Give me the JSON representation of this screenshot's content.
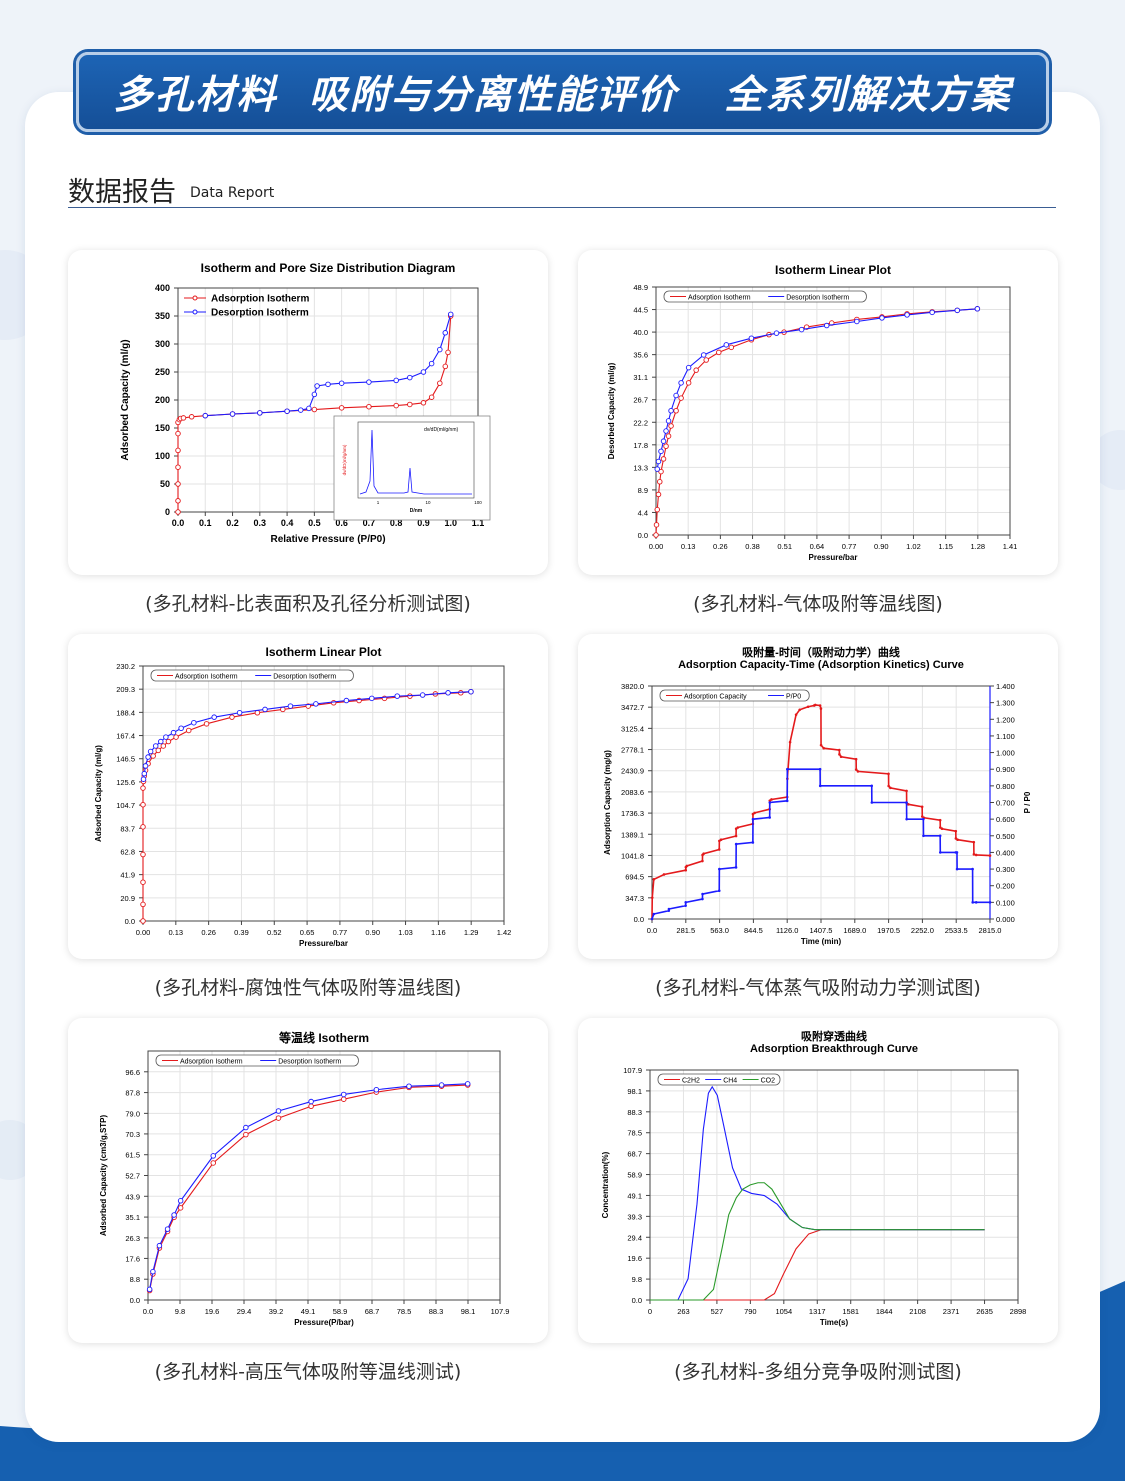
{
  "banner": {
    "title": "多孔材料  吸附与分离性能评价   全系列解决方案"
  },
  "section": {
    "title_cn": "数据报告",
    "title_en": "Data Report"
  },
  "colors": {
    "red": "#e41a1c",
    "blue": "#1c1cff",
    "green": "#2a9a2a",
    "banner": "#1a5aa7",
    "bottom": "#1660b0"
  },
  "captions": [
    "(多孔材料-比表面积及孔径分析测试图)",
    "(多孔材料-气体吸附等温线图)",
    "(多孔材料-腐蚀性气体吸附等温线图)",
    "(多孔材料-气体蒸气吸附动力学测试图)",
    "(多孔材料-高压气体吸附等温线测试)",
    "(多孔材料-多组分竞争吸附测试图)"
  ],
  "chart_data": [
    {
      "type": "line",
      "title": "Isotherm and Pore Size Distribution Diagram",
      "xlabel": "Relative Pressure (P/P0)",
      "ylabel": "Adsorbed Capacity (ml/g)",
      "xlim": [
        0,
        1.1
      ],
      "ylim": [
        0,
        400
      ],
      "xticks": [
        "0.0",
        "0.1",
        "0.2",
        "0.3",
        "0.4",
        "0.5",
        "0.6",
        "0.7",
        "0.8",
        "0.9",
        "1.0",
        "1.1"
      ],
      "yticks": [
        "0",
        "50",
        "100",
        "150",
        "200",
        "250",
        "300",
        "350",
        "400"
      ],
      "legend": "top-left",
      "series": [
        {
          "name": "Adsorption Isotherm",
          "color": "red",
          "x": [
            0,
            0,
            0,
            0,
            0,
            0,
            0,
            0.005,
            0.01,
            0.02,
            0.05,
            0.1,
            0.2,
            0.3,
            0.4,
            0.5,
            0.6,
            0.7,
            0.8,
            0.85,
            0.9,
            0.93,
            0.96,
            0.98,
            0.99,
            1.0
          ],
          "y": [
            0,
            20,
            50,
            80,
            110,
            140,
            160,
            165,
            167,
            168,
            170,
            172,
            175,
            177,
            180,
            183,
            186,
            188,
            190,
            192,
            195,
            205,
            230,
            260,
            285,
            350
          ]
        },
        {
          "name": "Desorption Isotherm",
          "color": "blue",
          "x": [
            0.1,
            0.2,
            0.3,
            0.4,
            0.45,
            0.48,
            0.5,
            0.51,
            0.55,
            0.6,
            0.7,
            0.8,
            0.85,
            0.9,
            0.93,
            0.96,
            0.98,
            1.0
          ],
          "y": [
            172,
            175,
            177,
            180,
            182,
            185,
            210,
            225,
            228,
            230,
            232,
            235,
            240,
            250,
            265,
            290,
            320,
            353
          ]
        }
      ],
      "inset": {
        "legend": "dv/dD(ml/g/nm)",
        "xlabel": "D/nm",
        "ylabel": "dv/dD(ml/g/nm)",
        "xticks": [
          "1",
          "10",
          "100"
        ]
      }
    },
    {
      "type": "line",
      "title": "Isotherm Linear Plot",
      "xlabel": "Pressure/bar",
      "ylabel": "Desorbed Capacity (ml/g)",
      "xlim": [
        0,
        1.41
      ],
      "ylim": [
        0,
        48.9
      ],
      "xticks": [
        "0.00",
        "0.13",
        "0.26",
        "0.38",
        "0.51",
        "0.64",
        "0.77",
        "0.90",
        "1.02",
        "1.15",
        "1.28",
        "1.41"
      ],
      "yticks": [
        "0.0",
        "4.4",
        "8.9",
        "13.3",
        "17.8",
        "22.2",
        "26.7",
        "31.1",
        "35.6",
        "40.0",
        "44.5",
        "48.9"
      ],
      "legend": "top-left",
      "series": [
        {
          "name": "Adsorption Isotherm",
          "color": "red",
          "x": [
            0,
            0.002,
            0.005,
            0.01,
            0.015,
            0.02,
            0.03,
            0.04,
            0.05,
            0.06,
            0.08,
            0.1,
            0.13,
            0.16,
            0.2,
            0.25,
            0.3,
            0.38,
            0.45,
            0.51,
            0.6,
            0.7,
            0.8,
            0.9,
            1.0,
            1.1,
            1.2,
            1.28
          ],
          "y": [
            0,
            2,
            5,
            8,
            10.5,
            12.5,
            15,
            17.5,
            19.5,
            21.5,
            24.5,
            27,
            30,
            32.5,
            34.5,
            36,
            37,
            38.5,
            39.5,
            40,
            41,
            41.8,
            42.5,
            43,
            43.6,
            44,
            44.3,
            44.6
          ]
        },
        {
          "name": "Desorption Isotherm",
          "color": "blue",
          "x": [
            0.005,
            0.01,
            0.02,
            0.03,
            0.04,
            0.05,
            0.06,
            0.08,
            0.1,
            0.13,
            0.19,
            0.28,
            0.38,
            0.48,
            0.58,
            0.68,
            0.8,
            0.9,
            1.0,
            1.1,
            1.2,
            1.28
          ],
          "y": [
            13,
            14.5,
            16.5,
            18.5,
            20.5,
            22.5,
            24.5,
            27.5,
            30,
            33,
            35.5,
            37.5,
            38.8,
            39.8,
            40.5,
            41.3,
            42.1,
            42.8,
            43.4,
            43.9,
            44.3,
            44.6
          ]
        }
      ]
    },
    {
      "type": "line",
      "title": "Isotherm Linear Plot",
      "xlabel": "Pressure/bar",
      "ylabel": "Adsorbed Capacity (ml/g)",
      "xlim": [
        0,
        1.42
      ],
      "ylim": [
        0,
        230.2
      ],
      "xticks": [
        "0.00",
        "0.13",
        "0.26",
        "0.39",
        "0.52",
        "0.65",
        "0.77",
        "0.90",
        "1.03",
        "1.16",
        "1.29",
        "1.42"
      ],
      "yticks": [
        "0.0",
        "20.9",
        "41.9",
        "62.8",
        "83.7",
        "104.7",
        "125.6",
        "146.5",
        "167.4",
        "188.4",
        "209.3",
        "230.2"
      ],
      "legend": "top-left",
      "series": [
        {
          "name": "Adsorption Isotherm",
          "color": "red",
          "x": [
            0,
            0,
            0,
            0,
            0,
            0,
            0,
            0.002,
            0.005,
            0.01,
            0.02,
            0.04,
            0.06,
            0.08,
            0.1,
            0.13,
            0.18,
            0.25,
            0.35,
            0.45,
            0.55,
            0.65,
            0.75,
            0.85,
            0.95,
            1.05,
            1.15,
            1.25,
            1.29
          ],
          "y": [
            0,
            15,
            35,
            60,
            85,
            105,
            120,
            126,
            131,
            136,
            142,
            149,
            154,
            158,
            162,
            166,
            172,
            178,
            184,
            188,
            191,
            194,
            197,
            199,
            201,
            203,
            205,
            206,
            207
          ]
        },
        {
          "name": "Desorption Isotherm",
          "color": "blue",
          "x": [
            0.002,
            0.005,
            0.01,
            0.02,
            0.03,
            0.05,
            0.07,
            0.09,
            0.12,
            0.15,
            0.2,
            0.28,
            0.38,
            0.48,
            0.58,
            0.68,
            0.8,
            0.9,
            1.0,
            1.1,
            1.2,
            1.29
          ],
          "y": [
            128,
            133,
            140,
            148,
            153,
            158,
            162,
            166,
            170,
            174,
            179,
            184,
            188,
            191,
            194,
            196,
            199,
            201,
            203,
            204,
            206,
            207
          ]
        }
      ]
    },
    {
      "type": "line",
      "title": "吸附量-时间（吸附动力学）曲线",
      "subtitle": "Adsorption Capacity-Time (Adsorption Kinetics) Curve",
      "xlabel": "Time (min)",
      "ylabel": "Adsorption Capacity (mg/g)",
      "y2label": "P / P0",
      "xlim": [
        0,
        2815
      ],
      "ylim": [
        0,
        3820
      ],
      "y2lim": [
        0,
        1.4
      ],
      "xticks": [
        "0.0",
        "281.5",
        "563.0",
        "844.5",
        "1126.0",
        "1407.5",
        "1689.0",
        "1970.5",
        "2252.0",
        "2533.5",
        "2815.0"
      ],
      "yticks": [
        "0.0",
        "347.3",
        "694.5",
        "1041.8",
        "1389.1",
        "1736.3",
        "2083.6",
        "2430.9",
        "2778.1",
        "3125.4",
        "3472.7",
        "3820.0"
      ],
      "y2ticks": [
        "0.000",
        "0.100",
        "0.200",
        "0.300",
        "0.400",
        "0.500",
        "0.600",
        "0.700",
        "0.800",
        "0.900",
        "1.000",
        "1.100",
        "1.200",
        "1.300",
        "1.400"
      ],
      "legend": "top-left",
      "series": [
        {
          "name": "Adsorption  Capacity",
          "color": "red",
          "axis": "left",
          "x": [
            0,
            2,
            15,
            100,
            281,
            282,
            290,
            420,
            421,
            430,
            560,
            561,
            575,
            700,
            701,
            715,
            840,
            841,
            855,
            980,
            981,
            995,
            1126,
            1127,
            1150,
            1200,
            1230,
            1300,
            1350,
            1360,
            1400,
            1407,
            1408,
            1430,
            1560,
            1561,
            1575,
            1700,
            1701,
            1715,
            1970,
            1971,
            1985,
            2120,
            2121,
            2135,
            2250,
            2251,
            2265,
            2400,
            2401,
            2415,
            2530,
            2531,
            2545,
            2680,
            2681,
            2700,
            2815
          ],
          "y": [
            0,
            350,
            650,
            730,
            800,
            850,
            870,
            950,
            1050,
            1070,
            1140,
            1280,
            1300,
            1360,
            1480,
            1500,
            1560,
            1720,
            1740,
            1800,
            1940,
            1960,
            2000,
            2300,
            2900,
            3350,
            3430,
            3480,
            3500,
            3510,
            3500,
            3450,
            2850,
            2800,
            2770,
            2700,
            2660,
            2620,
            2450,
            2420,
            2380,
            2180,
            2150,
            2100,
            1900,
            1880,
            1840,
            1680,
            1660,
            1620,
            1500,
            1480,
            1440,
            1320,
            1300,
            1260,
            1060,
            1050,
            1040
          ]
        },
        {
          "name": "P/P0",
          "color": "blue",
          "axis": "right",
          "x": [
            0,
            15,
            140,
            141,
            280,
            281,
            420,
            421,
            560,
            561,
            700,
            701,
            840,
            841,
            980,
            981,
            1126,
            1127,
            1400,
            1401,
            1830,
            1831,
            2120,
            2121,
            2260,
            2261,
            2400,
            2401,
            2530,
            2540,
            2541,
            2670,
            2671,
            2700,
            2815
          ],
          "y": [
            0.0,
            0.03,
            0.05,
            0.06,
            0.08,
            0.1,
            0.12,
            0.15,
            0.17,
            0.3,
            0.31,
            0.45,
            0.46,
            0.6,
            0.61,
            0.7,
            0.71,
            0.9,
            0.9,
            0.8,
            0.8,
            0.7,
            0.7,
            0.6,
            0.6,
            0.5,
            0.5,
            0.4,
            0.4,
            0.4,
            0.3,
            0.3,
            0.1,
            0.1,
            0.1
          ]
        }
      ]
    },
    {
      "type": "line",
      "title": "等温线 Isotherm",
      "xlabel": "Pressure(P/bar)",
      "ylabel": "Adsorbed Capacity (cm3/g,STP)",
      "xlim": [
        0,
        107.9
      ],
      "ylim": [
        0,
        105.4
      ],
      "xticks": [
        "0.0",
        "9.8",
        "19.6",
        "29.4",
        "39.2",
        "49.1",
        "58.9",
        "68.7",
        "78.5",
        "88.3",
        "98.1",
        "107.9"
      ],
      "yticks": [
        "0.0",
        "8.8",
        "17.6",
        "26.3",
        "35.1",
        "43.9",
        "52.7",
        "61.5",
        "70.3",
        "79.0",
        "87.8",
        "96.6"
      ],
      "legend": "top-left",
      "series": [
        {
          "name": "Adsorption Isotherm",
          "color": "red",
          "x": [
            0.5,
            1.5,
            3.5,
            6,
            8,
            10,
            20,
            30,
            40,
            50,
            60,
            70,
            80,
            90,
            98
          ],
          "y": [
            4,
            11,
            22,
            29,
            35,
            39,
            58,
            70,
            77,
            82,
            85,
            88,
            90,
            90.5,
            91
          ]
        },
        {
          "name": "Desorption Isotherm",
          "color": "blue",
          "x": [
            0.5,
            1.5,
            3.5,
            6,
            8,
            10,
            20,
            30,
            40,
            50,
            60,
            70,
            80,
            90,
            98
          ],
          "y": [
            4.5,
            12,
            23,
            30,
            36,
            42,
            61,
            73,
            80,
            84,
            87,
            89,
            90.5,
            91,
            91.5
          ]
        }
      ]
    },
    {
      "type": "line",
      "title": "吸附穿透曲线",
      "subtitle": "Adsorption Breakthrough Curve",
      "xlabel": "Time(s)",
      "ylabel": "Concentration(%)",
      "xlim": [
        0,
        2898
      ],
      "ylim": [
        0,
        107.9
      ],
      "xticks": [
        "0",
        "263",
        "527",
        "790",
        "1054",
        "1317",
        "1581",
        "1844",
        "2108",
        "2371",
        "2635",
        "2898"
      ],
      "yticks": [
        "0.0",
        "9.8",
        "19.6",
        "29.4",
        "39.3",
        "49.1",
        "58.9",
        "68.7",
        "78.5",
        "88.3",
        "98.1",
        "107.9"
      ],
      "legend": "top-left",
      "series": [
        {
          "name": "C2H2",
          "color": "red",
          "x": [
            0,
            900,
            980,
            1050,
            1150,
            1250,
            1350,
            1450,
            2635
          ],
          "y": [
            0,
            0,
            3,
            12,
            24,
            31,
            33,
            33,
            33
          ]
        },
        {
          "name": "CH4",
          "color": "blue",
          "x": [
            0,
            220,
            300,
            370,
            420,
            460,
            490,
            530,
            580,
            650,
            720,
            800,
            900,
            1000,
            1100,
            1200,
            1300,
            1500,
            2635
          ],
          "y": [
            0,
            0,
            10,
            45,
            80,
            97,
            100,
            96,
            82,
            62,
            52,
            50,
            49,
            45,
            38,
            34,
            33,
            33,
            33
          ]
        },
        {
          "name": "CO2",
          "color": "green",
          "x": [
            0,
            420,
            500,
            570,
            620,
            680,
            730,
            790,
            850,
            900,
            960,
            1030,
            1100,
            1200,
            1300,
            1500,
            2635
          ],
          "y": [
            0,
            0,
            5,
            25,
            40,
            48,
            52,
            54,
            55,
            55,
            52,
            45,
            38,
            34,
            33,
            33,
            33
          ]
        }
      ]
    }
  ]
}
